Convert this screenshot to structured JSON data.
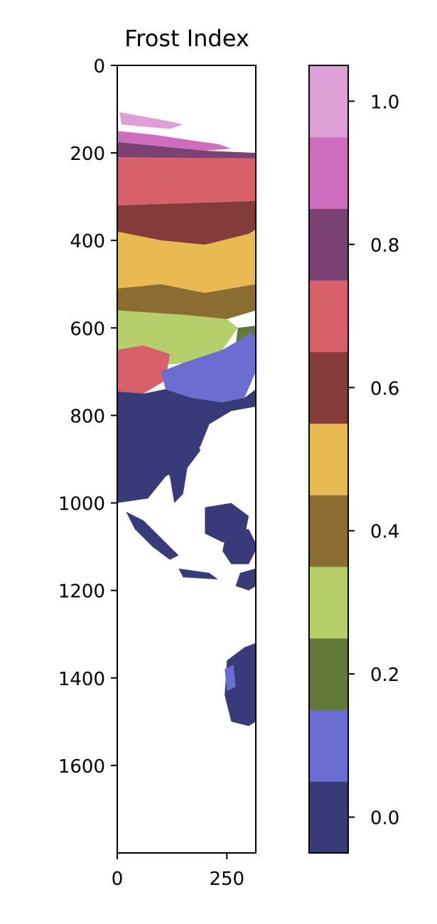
{
  "chart_data": {
    "type": "heatmap",
    "title": "Frost Index",
    "xlabel": "",
    "ylabel": "",
    "x_ticks": [
      0,
      250
    ],
    "y_ticks": [
      0,
      200,
      400,
      600,
      800,
      1000,
      1200,
      1400,
      1600
    ],
    "xlim": [
      0,
      316
    ],
    "ylim": [
      1800,
      0
    ],
    "colorbar": {
      "range": [
        -0.05,
        1.05
      ],
      "ticks": [
        0.0,
        0.2,
        0.4,
        0.6,
        0.8,
        1.0
      ],
      "tick_labels": [
        "0.0",
        "0.2",
        "0.4",
        "0.6",
        "0.8",
        "1.0"
      ],
      "bins": [
        {
          "from": -0.05,
          "to": 0.05,
          "color": "#393b79"
        },
        {
          "from": 0.05,
          "to": 0.15,
          "color": "#6b6ecf"
        },
        {
          "from": 0.15,
          "to": 0.25,
          "color": "#637939"
        },
        {
          "from": 0.25,
          "to": 0.35,
          "color": "#b5cf6b"
        },
        {
          "from": 0.35,
          "to": 0.45,
          "color": "#8c6d31"
        },
        {
          "from": 0.45,
          "to": 0.55,
          "color": "#e7ba52"
        },
        {
          "from": 0.55,
          "to": 0.65,
          "color": "#843c39"
        },
        {
          "from": 0.65,
          "to": 0.75,
          "color": "#d6616b"
        },
        {
          "from": 0.75,
          "to": 0.85,
          "color": "#7b4173"
        },
        {
          "from": 0.85,
          "to": 0.95,
          "color": "#ce6dbd"
        },
        {
          "from": 0.95,
          "to": 1.05,
          "color": "#de9ed6"
        }
      ]
    },
    "regions": [
      {
        "name": "arctic-islands",
        "value": 1.0,
        "points": [
          [
            5,
            107
          ],
          [
            60,
            117
          ],
          [
            120,
            128
          ],
          [
            150,
            135
          ],
          [
            120,
            145
          ],
          [
            60,
            140
          ],
          [
            10,
            135
          ]
        ]
      },
      {
        "name": "northern-fringe-magenta",
        "value": 0.9,
        "points": [
          [
            0,
            150
          ],
          [
            80,
            158
          ],
          [
            160,
            170
          ],
          [
            230,
            180
          ],
          [
            260,
            190
          ],
          [
            200,
            195
          ],
          [
            100,
            185
          ],
          [
            0,
            175
          ]
        ]
      },
      {
        "name": "northern-purple",
        "value": 0.8,
        "points": [
          [
            0,
            175
          ],
          [
            100,
            185
          ],
          [
            200,
            195
          ],
          [
            316,
            200
          ],
          [
            316,
            215
          ],
          [
            200,
            215
          ],
          [
            100,
            212
          ],
          [
            0,
            210
          ]
        ]
      },
      {
        "name": "siberia-pink",
        "value": 0.7,
        "points": [
          [
            0,
            210
          ],
          [
            316,
            212
          ],
          [
            316,
            310
          ],
          [
            0,
            320
          ]
        ]
      },
      {
        "name": "central-brown",
        "value": 0.6,
        "points": [
          [
            0,
            320
          ],
          [
            316,
            310
          ],
          [
            316,
            375
          ],
          [
            300,
            385
          ],
          [
            200,
            410
          ],
          [
            100,
            400
          ],
          [
            0,
            380
          ]
        ]
      },
      {
        "name": "mongolia-yellow",
        "value": 0.5,
        "points": [
          [
            0,
            380
          ],
          [
            100,
            400
          ],
          [
            200,
            410
          ],
          [
            300,
            385
          ],
          [
            316,
            375
          ],
          [
            316,
            500
          ],
          [
            200,
            520
          ],
          [
            100,
            500
          ],
          [
            0,
            510
          ]
        ]
      },
      {
        "name": "north-china-olive",
        "value": 0.4,
        "points": [
          [
            0,
            510
          ],
          [
            100,
            500
          ],
          [
            200,
            520
          ],
          [
            316,
            500
          ],
          [
            316,
            560
          ],
          [
            250,
            580
          ],
          [
            150,
            570
          ],
          [
            0,
            560
          ]
        ]
      },
      {
        "name": "central-china-lightgreen",
        "value": 0.3,
        "points": [
          [
            0,
            560
          ],
          [
            150,
            570
          ],
          [
            250,
            580
          ],
          [
            275,
            600
          ],
          [
            240,
            650
          ],
          [
            150,
            680
          ],
          [
            60,
            690
          ],
          [
            0,
            670
          ]
        ]
      },
      {
        "name": "korea-green",
        "value": 0.2,
        "points": [
          [
            275,
            600
          ],
          [
            316,
            595
          ],
          [
            316,
            660
          ],
          [
            290,
            660
          ],
          [
            270,
            640
          ]
        ]
      },
      {
        "name": "tibet-pink",
        "value": 0.7,
        "points": [
          [
            0,
            650
          ],
          [
            60,
            640
          ],
          [
            120,
            660
          ],
          [
            110,
            720
          ],
          [
            60,
            750
          ],
          [
            0,
            745
          ]
        ]
      },
      {
        "name": "south-china-blue",
        "value": 0.1,
        "points": [
          [
            100,
            700
          ],
          [
            150,
            680
          ],
          [
            240,
            650
          ],
          [
            275,
            630
          ],
          [
            305,
            610
          ],
          [
            316,
            625
          ],
          [
            316,
            700
          ],
          [
            290,
            760
          ],
          [
            240,
            770
          ],
          [
            170,
            760
          ],
          [
            110,
            740
          ]
        ]
      },
      {
        "name": "south-asia-navy",
        "value": 0.0,
        "points": [
          [
            0,
            745
          ],
          [
            60,
            750
          ],
          [
            110,
            740
          ],
          [
            170,
            760
          ],
          [
            240,
            770
          ],
          [
            290,
            760
          ],
          [
            316,
            740
          ],
          [
            316,
            780
          ],
          [
            260,
            790
          ],
          [
            210,
            820
          ],
          [
            190,
            870
          ],
          [
            170,
            900
          ],
          [
            110,
            940
          ],
          [
            70,
            990
          ],
          [
            0,
            1000
          ]
        ]
      },
      {
        "name": "indochina-navy",
        "value": 0.0,
        "points": [
          [
            120,
            820
          ],
          [
            170,
            840
          ],
          [
            190,
            880
          ],
          [
            160,
            920
          ],
          [
            150,
            980
          ],
          [
            130,
            1000
          ],
          [
            120,
            940
          ],
          [
            100,
            900
          ],
          [
            110,
            860
          ]
        ]
      },
      {
        "name": "borneo-navy",
        "value": 0.0,
        "points": [
          [
            200,
            1010
          ],
          [
            260,
            1000
          ],
          [
            300,
            1030
          ],
          [
            290,
            1080
          ],
          [
            240,
            1090
          ],
          [
            200,
            1070
          ]
        ]
      },
      {
        "name": "sumatra-navy",
        "value": 0.0,
        "points": [
          [
            20,
            1020
          ],
          [
            60,
            1040
          ],
          [
            110,
            1090
          ],
          [
            140,
            1120
          ],
          [
            120,
            1130
          ],
          [
            80,
            1100
          ],
          [
            40,
            1060
          ]
        ]
      },
      {
        "name": "sulawesi-navy",
        "value": 0.0,
        "points": [
          [
            250,
            1060
          ],
          [
            300,
            1060
          ],
          [
            320,
            1100
          ],
          [
            300,
            1140
          ],
          [
            260,
            1140
          ],
          [
            240,
            1110
          ]
        ]
      },
      {
        "name": "java-navy",
        "value": 0.0,
        "points": [
          [
            140,
            1150
          ],
          [
            210,
            1160
          ],
          [
            230,
            1175
          ],
          [
            150,
            1170
          ]
        ]
      },
      {
        "name": "newguinea-navy",
        "value": 0.0,
        "points": [
          [
            280,
            1160
          ],
          [
            316,
            1150
          ],
          [
            316,
            1190
          ],
          [
            300,
            1200
          ],
          [
            270,
            1190
          ]
        ]
      },
      {
        "name": "australia-navy",
        "value": 0.0,
        "points": [
          [
            250,
            1360
          ],
          [
            290,
            1330
          ],
          [
            316,
            1320
          ],
          [
            316,
            1500
          ],
          [
            300,
            1510
          ],
          [
            260,
            1500
          ],
          [
            245,
            1440
          ]
        ]
      },
      {
        "name": "australia-coast-blue",
        "value": 0.1,
        "points": [
          [
            245,
            1380
          ],
          [
            265,
            1370
          ],
          [
            270,
            1420
          ],
          [
            250,
            1430
          ]
        ]
      }
    ]
  }
}
